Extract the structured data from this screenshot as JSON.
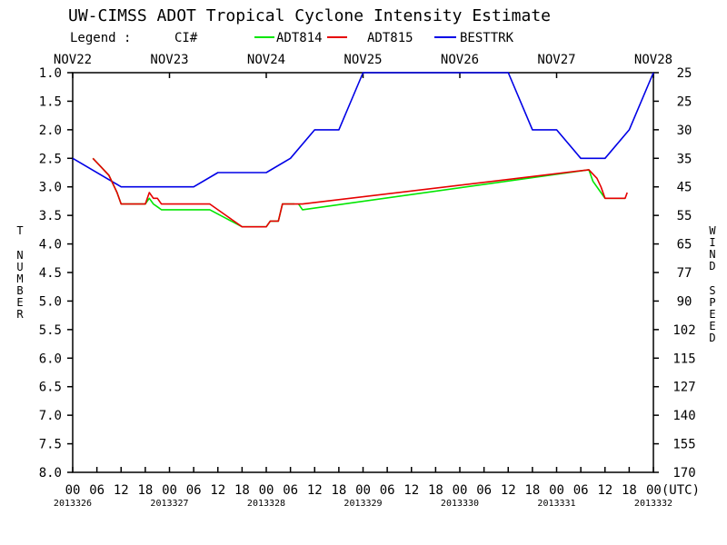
{
  "chart_data": {
    "type": "line",
    "title": "UW-CIMSS ADOT Tropical Cyclone Intensity Estimate",
    "legend": {
      "label": "Legend :",
      "ci_label": "CI#",
      "placement": "top",
      "entries": [
        {
          "name": "ADT814",
          "color": "#00e600"
        },
        {
          "name": "ADT815",
          "color": "#e60000"
        },
        {
          "name": "BESTTRK",
          "color": "#0000e6"
        }
      ]
    },
    "ylabel": "T NUMBER",
    "y2label": "WIND SPEED",
    "xlabel_units": "(UTC)",
    "x_range_hours": [
      0,
      144
    ],
    "ylim": [
      1.0,
      8.0
    ],
    "y_inverted": true,
    "y_ticks": [
      "1.0",
      "1.5",
      "2.0",
      "2.5",
      "3.0",
      "3.5",
      "4.0",
      "4.5",
      "5.0",
      "5.5",
      "6.0",
      "6.5",
      "7.0",
      "7.5",
      "8.0"
    ],
    "y2_ticks": [
      "25",
      "25",
      "30",
      "35",
      "45",
      "55",
      "65",
      "77",
      "90",
      "102",
      "115",
      "127",
      "140",
      "155",
      "170"
    ],
    "top_dates": [
      {
        "label": "NOV22",
        "hour": 0
      },
      {
        "label": "NOV23",
        "hour": 24
      },
      {
        "label": "NOV24",
        "hour": 48
      },
      {
        "label": "NOV25",
        "hour": 72
      },
      {
        "label": "NOV26",
        "hour": 96
      },
      {
        "label": "NOV27",
        "hour": 120
      },
      {
        "label": "NOV28",
        "hour": 144
      }
    ],
    "x_hour_labels": [
      "00",
      "06",
      "12",
      "18",
      "00",
      "06",
      "12",
      "18",
      "00",
      "06",
      "12",
      "18",
      "00",
      "06",
      "12",
      "18",
      "00",
      "06",
      "12",
      "18",
      "00",
      "06",
      "12",
      "18",
      "00"
    ],
    "x_hour_last_suffix": "(UTC)",
    "julian_dates": [
      {
        "label": "2013326",
        "hour": 0
      },
      {
        "label": "2013327",
        "hour": 24
      },
      {
        "label": "2013328",
        "hour": 48
      },
      {
        "label": "2013329",
        "hour": 72
      },
      {
        "label": "2013330",
        "hour": 96
      },
      {
        "label": "2013331",
        "hour": 120
      },
      {
        "label": "2013332",
        "hour": 144
      }
    ],
    "series": [
      {
        "name": "BESTTRK",
        "color": "#0000e6",
        "points": [
          [
            0,
            2.5
          ],
          [
            12,
            3.0
          ],
          [
            30,
            3.0
          ],
          [
            36,
            2.75
          ],
          [
            48,
            2.75
          ],
          [
            54,
            2.5
          ],
          [
            60,
            2.0
          ],
          [
            66,
            2.0
          ],
          [
            72,
            1.0
          ],
          [
            108,
            1.0
          ],
          [
            114,
            2.0
          ],
          [
            120,
            2.0
          ],
          [
            126,
            2.5
          ],
          [
            132,
            2.5
          ],
          [
            138,
            2.0
          ],
          [
            144,
            1.0
          ]
        ]
      },
      {
        "name": "ADT814",
        "color": "#00e600",
        "segments": [
          [
            [
              5,
              2.5
            ],
            [
              7,
              2.65
            ],
            [
              9,
              2.8
            ],
            [
              11,
              3.1
            ],
            [
              12,
              3.3
            ],
            [
              18,
              3.3
            ],
            [
              19,
              3.2
            ],
            [
              20,
              3.3
            ],
            [
              21,
              3.35
            ],
            [
              22,
              3.4
            ],
            [
              26,
              3.4
            ],
            [
              30,
              3.4
            ],
            [
              34,
              3.4
            ],
            [
              38,
              3.55
            ],
            [
              42,
              3.7
            ],
            [
              46,
              3.7
            ],
            [
              48,
              3.7
            ],
            [
              49,
              3.6
            ],
            [
              51,
              3.6
            ],
            [
              52,
              3.3
            ],
            [
              55,
              3.3
            ]
          ],
          [
            [
              56,
              3.3
            ],
            [
              57,
              3.4
            ],
            [
              128,
              2.7
            ],
            [
              129,
              2.9
            ],
            [
              131,
              3.1
            ],
            [
              132,
              3.2
            ],
            [
              137,
              3.2
            ]
          ]
        ]
      },
      {
        "name": "ADT815",
        "color": "#e60000",
        "segments": [
          [
            [
              5,
              2.5
            ],
            [
              7,
              2.65
            ],
            [
              9,
              2.8
            ],
            [
              11,
              3.1
            ],
            [
              12,
              3.3
            ],
            [
              18,
              3.3
            ],
            [
              19,
              3.1
            ],
            [
              20,
              3.2
            ],
            [
              21,
              3.2
            ],
            [
              22,
              3.3
            ],
            [
              26,
              3.3
            ],
            [
              30,
              3.3
            ],
            [
              34,
              3.3
            ],
            [
              38,
              3.5
            ],
            [
              42,
              3.7
            ],
            [
              46,
              3.7
            ],
            [
              48,
              3.7
            ],
            [
              49,
              3.6
            ],
            [
              51,
              3.6
            ],
            [
              52,
              3.3
            ],
            [
              55,
              3.3
            ],
            [
              57,
              3.3
            ],
            [
              128,
              2.7
            ],
            [
              130,
              2.85
            ],
            [
              131,
              3.0
            ],
            [
              132,
              3.2
            ],
            [
              137,
              3.2
            ],
            [
              137.5,
              3.1
            ]
          ]
        ]
      }
    ]
  }
}
